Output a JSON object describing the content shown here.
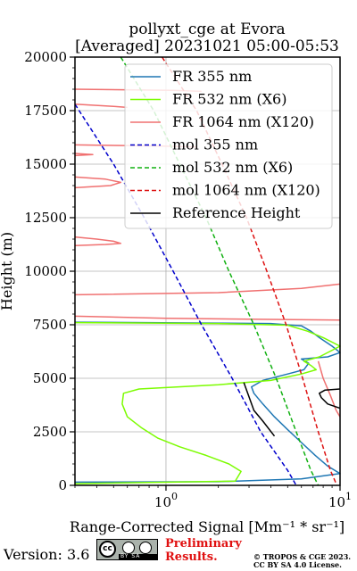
{
  "chart_data": {
    "type": "line",
    "title": "pollyxt_cge at Evora",
    "subtitle": "[Averaged] 20231021 05:00-05:53",
    "xlabel": "Range-Corrected Signal [Mm⁻¹ * sr⁻¹]",
    "ylabel": "Height (m)",
    "xscale": "log",
    "xlim": [
      0.3,
      10
    ],
    "ylim": [
      0,
      20000
    ],
    "x_ticks": [
      {
        "value": 1,
        "label": "10",
        "exp": "0"
      },
      {
        "value": 10,
        "label": "10",
        "exp": "1"
      }
    ],
    "y_ticks": [
      {
        "value": 0,
        "label": "0"
      },
      {
        "value": 2500,
        "label": "2500"
      },
      {
        "value": 5000,
        "label": "5000"
      },
      {
        "value": 7500,
        "label": "7500"
      },
      {
        "value": 10000,
        "label": "10000"
      },
      {
        "value": 12500,
        "label": "12500"
      },
      {
        "value": 15000,
        "label": "15000"
      },
      {
        "value": 17500,
        "label": "17500"
      },
      {
        "value": 20000,
        "label": "20000"
      }
    ],
    "grid": true,
    "legend_position": "top-right",
    "series": [
      {
        "name": "FR 355 nm",
        "color": "#1f77b4",
        "style": "solid",
        "points": [
          [
            0.3,
            150
          ],
          [
            2,
            170
          ],
          [
            6,
            300
          ],
          [
            10,
            550
          ],
          [
            8.5,
            900
          ],
          [
            7.2,
            1400
          ],
          [
            6,
            2000
          ],
          [
            5,
            2600
          ],
          [
            4.2,
            3200
          ],
          [
            3.6,
            3800
          ],
          [
            3.2,
            4300
          ],
          [
            3.1,
            4600
          ],
          [
            3.6,
            4900
          ],
          [
            5,
            5200
          ],
          [
            6.2,
            5400
          ],
          [
            6.6,
            5700
          ],
          [
            6.0,
            5900
          ],
          [
            8.5,
            6000
          ],
          [
            10,
            6200
          ],
          [
            9,
            6500
          ],
          [
            7.6,
            6900
          ],
          [
            6.8,
            7200
          ],
          [
            6,
            7450
          ],
          [
            4,
            7560
          ],
          [
            0.3,
            7620
          ]
        ]
      },
      {
        "name": "FR 532 nm (X6)",
        "color": "#7cfc00",
        "style": "solid",
        "points": [
          [
            0.3,
            80
          ],
          [
            2.5,
            200
          ],
          [
            2.7,
            650
          ],
          [
            2.3,
            1000
          ],
          [
            1.7,
            1400
          ],
          [
            1.2,
            1800
          ],
          [
            0.9,
            2200
          ],
          [
            0.72,
            2700
          ],
          [
            0.6,
            3200
          ],
          [
            0.56,
            3800
          ],
          [
            0.57,
            4300
          ],
          [
            0.7,
            4500
          ],
          [
            2,
            4700
          ],
          [
            4,
            4900
          ],
          [
            6,
            5200
          ],
          [
            7.3,
            5400
          ],
          [
            6.8,
            5600
          ],
          [
            6.2,
            5800
          ],
          [
            7.6,
            6000
          ],
          [
            10,
            6500
          ],
          [
            8,
            6900
          ],
          [
            6.5,
            7200
          ],
          [
            5,
            7480
          ],
          [
            2,
            7560
          ],
          [
            0.3,
            7600
          ]
        ]
      },
      {
        "name": "FR 1064 nm (X120)",
        "color": "#f07070",
        "style": "solid",
        "points": [
          [
            0.3,
            7900
          ],
          [
            1,
            7800
          ],
          [
            4,
            7750
          ],
          [
            10,
            7720
          ],
          null,
          [
            0.3,
            8900
          ],
          [
            2,
            9000
          ],
          [
            6,
            9200
          ],
          [
            10,
            9400
          ],
          null,
          [
            0.3,
            11600
          ],
          [
            0.4,
            11500
          ],
          [
            0.5,
            11400
          ],
          [
            0.55,
            11300
          ],
          [
            0.45,
            11250
          ],
          [
            0.3,
            11200
          ],
          null,
          [
            0.3,
            14400
          ],
          [
            0.45,
            14300
          ],
          [
            0.55,
            14150
          ],
          [
            0.48,
            14000
          ],
          [
            0.3,
            13900
          ],
          null,
          [
            0.3,
            15500
          ],
          [
            0.38,
            15450
          ],
          [
            0.3,
            15400
          ],
          null,
          [
            0.3,
            15900
          ],
          [
            0.9,
            15850
          ],
          [
            1.5,
            15800
          ],
          null,
          [
            0.3,
            17800
          ],
          [
            0.5,
            17700
          ],
          [
            0.6,
            17650
          ],
          null,
          [
            0.3,
            18500
          ],
          [
            1.1,
            18450
          ],
          [
            1.6,
            18400
          ],
          null,
          [
            7.5,
            5800
          ],
          [
            8,
            5000
          ],
          [
            8.8,
            4200
          ],
          [
            9.5,
            3500
          ],
          [
            10,
            3200
          ]
        ]
      },
      {
        "name": "mol 355 nm",
        "color": "#0000cc",
        "style": "dashed",
        "points": [
          [
            0.3,
            17800
          ],
          [
            0.5,
            15000
          ],
          [
            0.75,
            12500
          ],
          [
            1.1,
            10000
          ],
          [
            1.6,
            7500
          ],
          [
            2.4,
            5000
          ],
          [
            3.5,
            2500
          ],
          [
            5,
            700
          ],
          [
            5.6,
            0
          ]
        ]
      },
      {
        "name": "mol 532 nm (X6)",
        "color": "#10b010",
        "style": "dashed",
        "points": [
          [
            0.55,
            20000
          ],
          [
            0.85,
            17500
          ],
          [
            1.2,
            15000
          ],
          [
            1.7,
            12500
          ],
          [
            2.3,
            10000
          ],
          [
            3.2,
            7500
          ],
          [
            4.3,
            5000
          ],
          [
            5.6,
            2500
          ],
          [
            6.8,
            700
          ],
          [
            7.5,
            0
          ]
        ]
      },
      {
        "name": "mol 1064 nm (X120)",
        "color": "#dd1111",
        "style": "dashed",
        "points": [
          [
            0.95,
            20000
          ],
          [
            1.5,
            17500
          ],
          [
            2.1,
            15000
          ],
          [
            2.9,
            12500
          ],
          [
            3.8,
            10000
          ],
          [
            4.9,
            7500
          ],
          [
            6.1,
            5000
          ],
          [
            7.5,
            2500
          ],
          [
            8.8,
            700
          ],
          [
            9.6,
            0
          ]
        ]
      },
      {
        "name": "Reference Height",
        "color": "#000000",
        "style": "solid",
        "points": [
          [
            2.8,
            4800
          ],
          [
            3.2,
            3500
          ],
          [
            3.6,
            3000
          ],
          [
            4.2,
            2300
          ],
          null,
          [
            10,
            4500
          ],
          [
            8.2,
            4450
          ],
          [
            7.6,
            4300
          ],
          [
            7.8,
            4100
          ],
          [
            8.5,
            3800
          ],
          [
            10,
            3600
          ]
        ]
      }
    ]
  },
  "footer": {
    "version": "Version: 3.6",
    "cc_strip": "BY SA",
    "cc_logo": "cc",
    "preliminary_line1": "Preliminary",
    "preliminary_line2": "Results.",
    "copyright_line1": "© TROPOS & CGE 2023.",
    "copyright_line2": "CC BY SA 4.0 License."
  }
}
